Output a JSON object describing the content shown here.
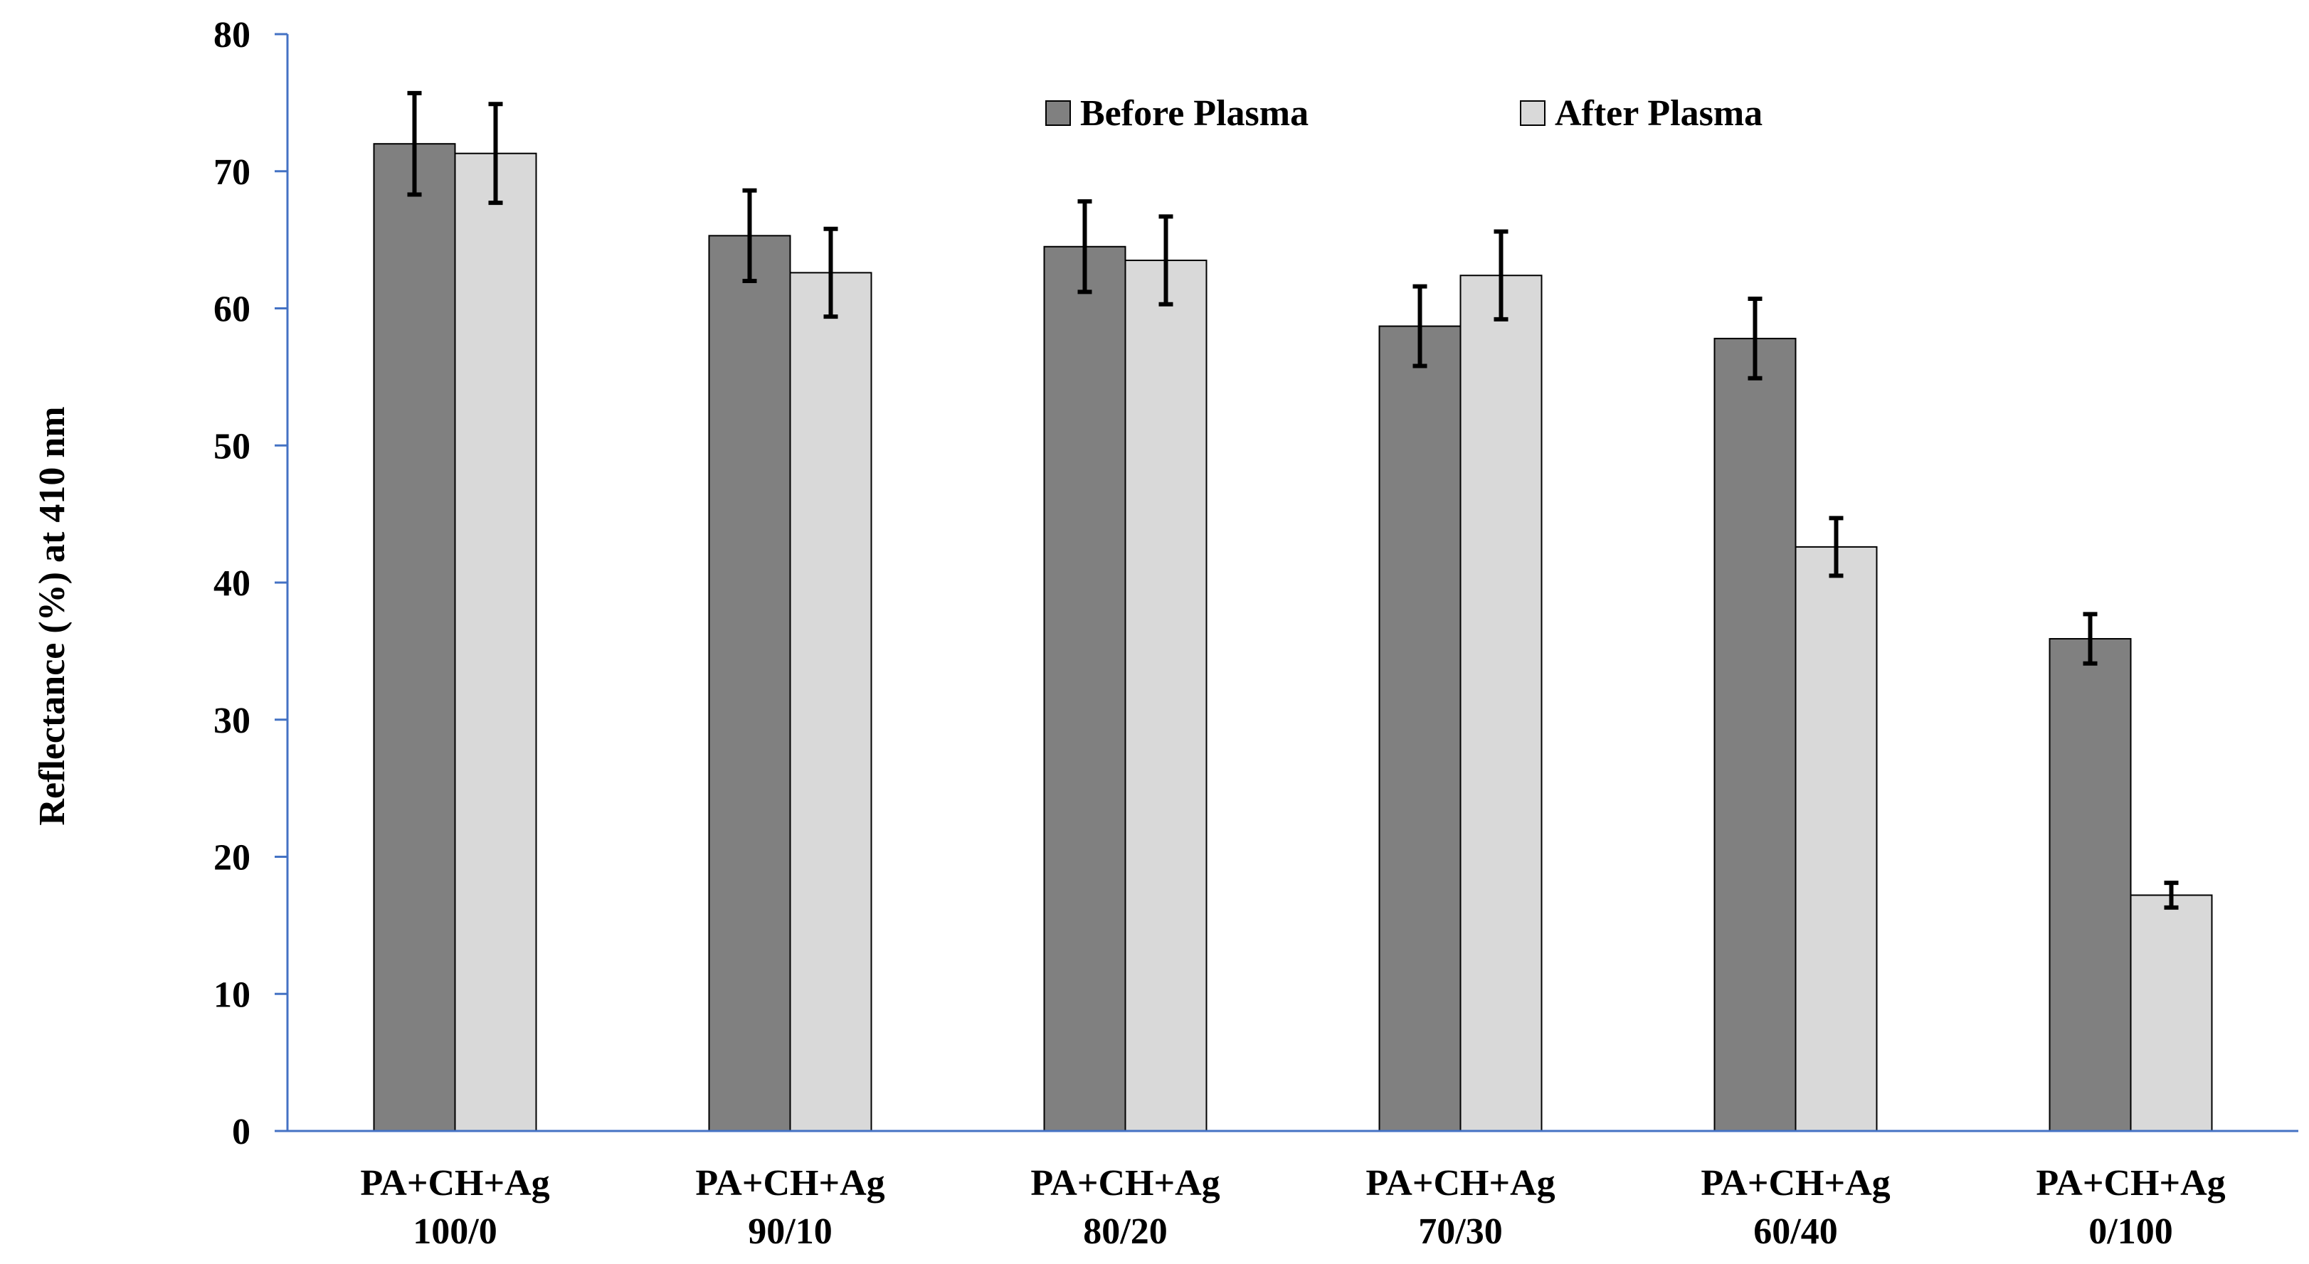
{
  "chart_data": {
    "type": "bar",
    "title": "",
    "xlabel": "",
    "ylabel": "Reflectance  (%) at 410 nm",
    "ylim": [
      0,
      80
    ],
    "yticks": [
      0,
      10,
      20,
      30,
      40,
      50,
      60,
      70,
      80
    ],
    "grid": false,
    "legend_position": "top-right",
    "categories": [
      [
        "PA+CH+Ag",
        "100/0"
      ],
      [
        "PA+CH+Ag",
        "90/10"
      ],
      [
        "PA+CH+Ag",
        "80/20"
      ],
      [
        "PA+CH+Ag",
        "70/30"
      ],
      [
        "PA+CH+Ag",
        "60/40"
      ],
      [
        "PA+CH+Ag",
        "0/100"
      ]
    ],
    "series": [
      {
        "name": "Before Plasma",
        "color": "#808080",
        "values": [
          72.0,
          65.3,
          64.5,
          58.7,
          57.8,
          35.9
        ],
        "errors": [
          3.7,
          3.3,
          3.3,
          2.9,
          2.9,
          1.8
        ]
      },
      {
        "name": "After Plasma",
        "color": "#d9d9d9",
        "values": [
          71.3,
          62.6,
          63.5,
          62.4,
          42.6,
          17.2
        ],
        "errors": [
          3.6,
          3.2,
          3.2,
          3.2,
          2.1,
          0.9
        ]
      }
    ]
  }
}
